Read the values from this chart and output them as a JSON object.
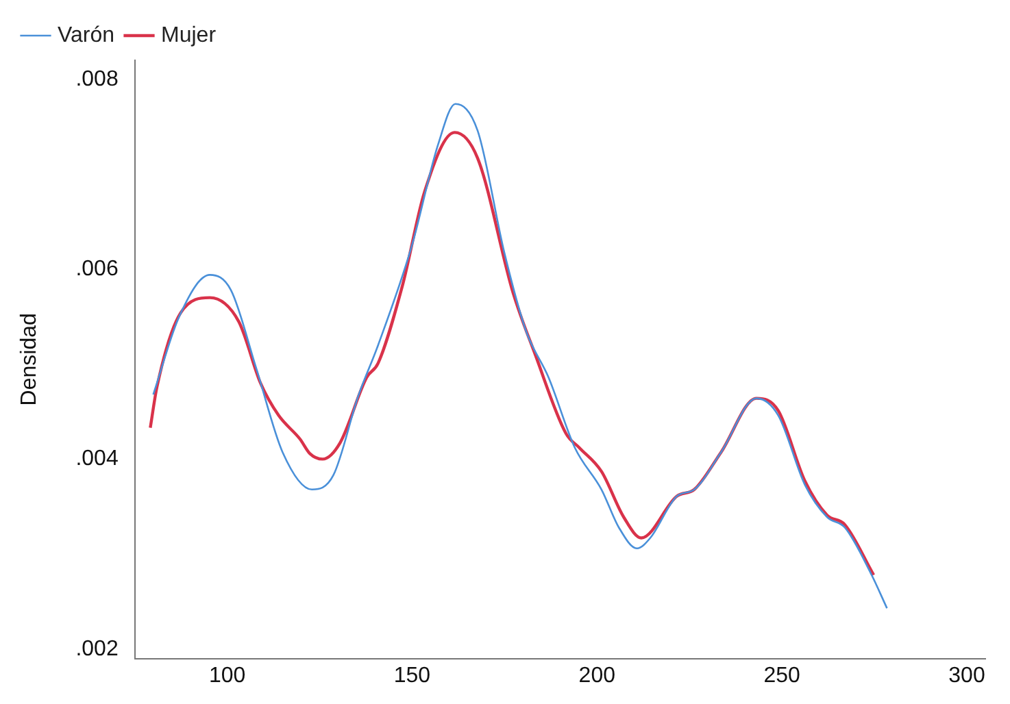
{
  "chart_data": {
    "type": "line",
    "ylabel": "Densidad",
    "xlim": [
      75,
      305
    ],
    "xticks": [
      100,
      150,
      200,
      250,
      300
    ],
    "ylim": [
      0.0019,
      0.0082
    ],
    "yticks": [
      {
        "value": 0.002,
        "label": ".002"
      },
      {
        "value": 0.004,
        "label": ".004"
      },
      {
        "value": 0.006,
        "label": ".006"
      },
      {
        "value": 0.008,
        "label": ".008"
      }
    ],
    "grid": false,
    "legend": "top left",
    "marker": "none",
    "line_style": "solid",
    "series": [
      {
        "name": "Varón",
        "color": "#4a90d9",
        "x": [
          80,
          87,
          95.3,
          101,
          107.9,
          115,
          122.9,
          128.7,
          135.4,
          140.8,
          149.8,
          157,
          161.7,
          167.7,
          174.9,
          180.8,
          186.9,
          194,
          201.2,
          205.9,
          210.8,
          214.4,
          221.6,
          226.3,
          233.5,
          243.1,
          249,
          256.2,
          262.2,
          267,
          274,
          278.4
        ],
        "values": [
          0.00468,
          0.0055,
          0.00594,
          0.00578,
          0.00495,
          0.00407,
          0.00368,
          0.00383,
          0.00466,
          0.0052,
          0.00623,
          0.00731,
          0.00774,
          0.00746,
          0.00618,
          0.00535,
          0.00486,
          0.00412,
          0.00368,
          0.00328,
          0.00306,
          0.00317,
          0.00361,
          0.00368,
          0.00407,
          0.00464,
          0.00446,
          0.00373,
          0.00339,
          0.00328,
          0.0028,
          0.00243
        ]
      },
      {
        "name": "Mujer",
        "color": "#d9324a",
        "x": [
          79.2,
          81,
          87.4,
          95.3,
          103.1,
          109,
          113.9,
          119.7,
          122.3,
          125.8,
          130.5,
          137.7,
          140.8,
          147.4,
          153.4,
          161.5,
          167.7,
          177.3,
          183.3,
          191.6,
          195.2,
          201.2,
          207.2,
          212,
          221.6,
          226.3,
          233.5,
          243.1,
          249,
          256.2,
          262.2,
          267,
          274.8
        ],
        "values": [
          0.00433,
          0.00476,
          0.00554,
          0.0057,
          0.00545,
          0.0048,
          0.00446,
          0.00421,
          0.00406,
          0.004,
          0.00417,
          0.00486,
          0.00501,
          0.00583,
          0.00682,
          0.00744,
          0.00717,
          0.00575,
          0.0051,
          0.00427,
          0.00412,
          0.00387,
          0.00339,
          0.00317,
          0.00361,
          0.00368,
          0.00407,
          0.00464,
          0.00451,
          0.00377,
          0.00341,
          0.00331,
          0.00278
        ]
      }
    ]
  }
}
